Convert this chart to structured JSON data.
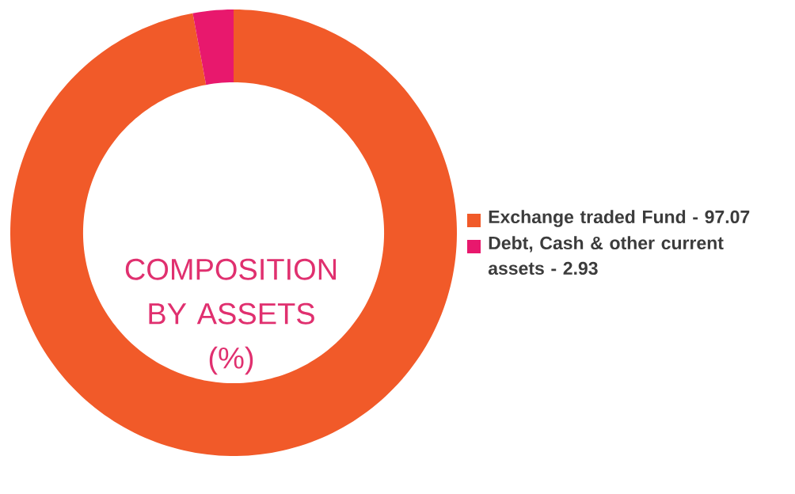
{
  "chart_data": {
    "type": "donut",
    "title": "COMPOSITION BY ASSETS (%)",
    "categories": [
      "Exchange traded Fund - 97.07",
      "Debt, Cash & other current assets - 2.93"
    ],
    "values": [
      97.07,
      2.93
    ],
    "colors": [
      "#f15a29",
      "#e8186d"
    ],
    "legend": "right"
  }
}
